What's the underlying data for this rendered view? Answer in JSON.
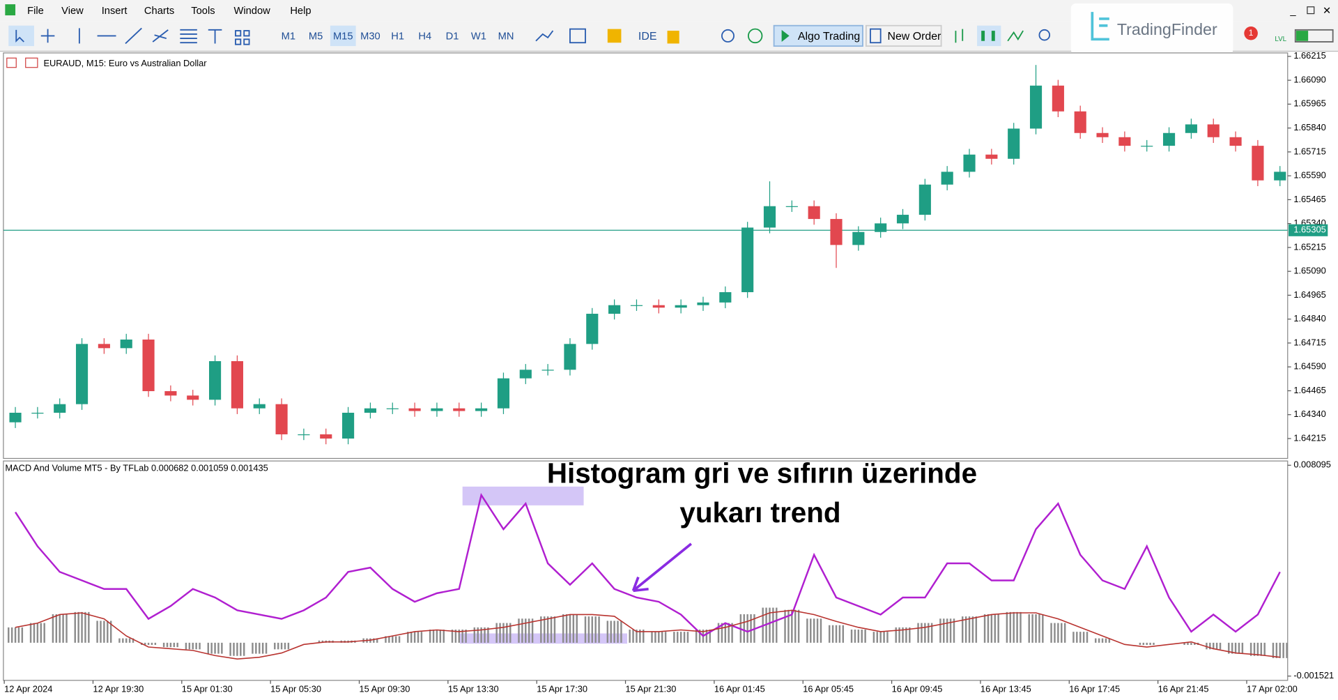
{
  "menu": [
    "File",
    "View",
    "Insert",
    "Charts",
    "Tools",
    "Window",
    "Help"
  ],
  "toolbar": {
    "timeframes": [
      "M1",
      "M5",
      "M15",
      "M30",
      "H1",
      "H4",
      "D1",
      "W1",
      "MN"
    ],
    "active_timeframe": "M15",
    "buttons": [
      "IDE",
      "Algo Trading",
      "New Order"
    ],
    "logo": "TradingFinder",
    "badge": "1"
  },
  "chart_data": [
    {
      "type": "candlestick",
      "title": "EURAUD, M15:  Euro vs Australian Dollar",
      "categories": [
        "12 Apr 2024",
        null,
        null,
        null,
        "12 Apr 19:30",
        null,
        null,
        null,
        "15 Apr 01:30",
        null,
        null,
        null,
        "15 Apr 05:30",
        null,
        null,
        null,
        "15 Apr 09:30",
        null,
        null,
        null,
        "15 Apr 13:30",
        null,
        null,
        null,
        "15 Apr 17:30",
        null,
        null,
        null,
        "15 Apr 21:30",
        null,
        null,
        null,
        "16 Apr 01:45",
        null,
        null,
        null,
        "16 Apr 05:45",
        null,
        null,
        null,
        "16 Apr 09:45",
        null,
        null,
        null,
        "16 Apr 13:45",
        null,
        null,
        null,
        "16 Apr 17:45",
        null,
        null,
        null,
        "16 Apr 21:45",
        null,
        null,
        null,
        "17 Apr 02:00",
        null
      ],
      "open": [
        1.643,
        1.6435,
        1.6435,
        1.64395,
        1.6471,
        1.64688,
        1.64733,
        1.64463,
        1.6444,
        1.64418,
        1.6462,
        1.64373,
        1.64395,
        1.64237,
        1.64237,
        1.64215,
        1.6435,
        1.64373,
        1.64373,
        1.64359,
        1.64373,
        1.64359,
        1.64373,
        1.6453,
        1.64575,
        1.64575,
        1.6471,
        1.64868,
        1.64913,
        1.64913,
        1.649,
        1.64913,
        1.64927,
        1.64981,
        1.65319,
        1.65431,
        1.65431,
        1.65364,
        1.65228,
        1.65296,
        1.65341,
        1.65386,
        1.65544,
        1.65611,
        1.65701,
        1.65679,
        1.65837,
        1.66062,
        1.65927,
        1.65814,
        1.65792,
        1.65747,
        1.65747,
        1.65814,
        1.65859,
        1.65792,
        1.65747,
        1.65566
      ],
      "high": [
        1.6438,
        1.6438,
        1.64425,
        1.6474,
        1.6474,
        1.64763,
        1.64763,
        1.64493,
        1.6447,
        1.6465,
        1.6465,
        1.64425,
        1.64425,
        1.64267,
        1.64267,
        1.6438,
        1.64403,
        1.64403,
        1.64403,
        1.64403,
        1.64403,
        1.64403,
        1.6456,
        1.64605,
        1.64605,
        1.6474,
        1.64898,
        1.64943,
        1.64943,
        1.64943,
        1.64943,
        1.64957,
        1.65011,
        1.65349,
        1.65561,
        1.65461,
        1.65461,
        1.65394,
        1.65326,
        1.65371,
        1.65416,
        1.65574,
        1.65641,
        1.65731,
        1.65731,
        1.65867,
        1.6617,
        1.66092,
        1.65957,
        1.65844,
        1.65822,
        1.65777,
        1.65844,
        1.65889,
        1.65889,
        1.65822,
        1.65777,
        1.65641
      ],
      "low": [
        1.6427,
        1.6432,
        1.6432,
        1.64365,
        1.64658,
        1.64658,
        1.64433,
        1.6441,
        1.64388,
        1.64388,
        1.64343,
        1.64343,
        1.64207,
        1.64207,
        1.64185,
        1.64185,
        1.6432,
        1.64343,
        1.64329,
        1.64329,
        1.64329,
        1.64329,
        1.64343,
        1.645,
        1.64545,
        1.64545,
        1.6468,
        1.64838,
        1.64883,
        1.6487,
        1.6487,
        1.64883,
        1.64897,
        1.64951,
        1.65289,
        1.65401,
        1.65334,
        1.65108,
        1.65198,
        1.65266,
        1.65311,
        1.65356,
        1.65514,
        1.65581,
        1.65649,
        1.65649,
        1.65807,
        1.65897,
        1.65784,
        1.65762,
        1.65717,
        1.65717,
        1.65717,
        1.65784,
        1.65762,
        1.65717,
        1.65536,
        1.65536
      ],
      "close": [
        1.6435,
        1.6435,
        1.64395,
        1.6471,
        1.64688,
        1.64733,
        1.64463,
        1.6444,
        1.64418,
        1.6462,
        1.64373,
        1.64395,
        1.64237,
        1.64237,
        1.64215,
        1.6435,
        1.64373,
        1.64373,
        1.64359,
        1.64373,
        1.64359,
        1.64373,
        1.6453,
        1.64575,
        1.64575,
        1.6471,
        1.64868,
        1.64913,
        1.64913,
        1.649,
        1.64913,
        1.64927,
        1.64981,
        1.65319,
        1.65431,
        1.65431,
        1.65364,
        1.65228,
        1.65296,
        1.65341,
        1.65386,
        1.65544,
        1.65611,
        1.65701,
        1.65679,
        1.65837,
        1.66062,
        1.65927,
        1.65814,
        1.65792,
        1.65747,
        1.65747,
        1.65814,
        1.65859,
        1.65792,
        1.65747,
        1.65566,
        1.65611
      ],
      "up_color": "#1f9e84",
      "down_color": "#e2474f",
      "ylim": [
        1.64111,
        1.66233
      ],
      "yticks": [
        1.66215,
        {
          "value": 1.6609,
          "label": "1.66090"
        },
        1.65965,
        {
          "value": 1.6584,
          "label": "1.65840"
        },
        1.65715,
        {
          "value": 1.6559,
          "label": "1.65590"
        },
        1.65465,
        {
          "value": 1.6534,
          "label": "1.65340"
        },
        1.65215,
        {
          "value": 1.6509,
          "label": "1.65090"
        },
        1.64965,
        {
          "value": 1.6484,
          "label": "1.64840"
        },
        1.64715,
        {
          "value": 1.6459,
          "label": "1.64590"
        },
        1.64465,
        {
          "value": 1.6434,
          "label": "1.64340"
        },
        1.64215
      ],
      "current_price": 1.65305,
      "current_price_color": "#1f9e84"
    },
    {
      "type": "macd",
      "title": "MACD And Volume MT5 - By TFLab 0.000682 0.001059 0.001435",
      "series": [
        {
          "color": "#b01fd0",
          "values": [
            0.005956,
            0.004399,
            0.003231,
            0.002842,
            0.002453,
            0.002453,
            0.00109,
            0.001674,
            0.002453,
            0.002063,
            0.001479,
            0.001285,
            0.00109,
            0.001479,
            0.002063,
            0.003231,
            0.003426,
            0.002453,
            0.001869,
            0.002258,
            0.002453,
            0.006735,
            0.005178,
            0.006346,
            0.00362,
            0.002647,
            0.00362,
            0.002453,
            0.002063,
            0.001869,
            0.001285,
            0.000311,
            0.000895,
            0.000506,
            0.000895,
            0.001285,
            0.00401,
            0.002063,
            0.001674,
            0.001285,
            0.002063,
            0.002063,
            0.00362,
            0.00362,
            0.002842,
            0.002842,
            0.005178,
            0.006346,
            0.00401,
            0.002842,
            0.002453,
            0.004399,
            0.002063,
            0.000506,
            0.001285,
            0.000506,
            0.001285,
            0.003231
          ]
        },
        {
          "color": "#b8322e",
          "values": [
            0.000701,
            0.000895,
            0.001285,
            0.001363,
            0.00109,
            0.000311,
            -0.000195,
            -0.000273,
            -0.00035,
            -0.000584,
            -0.00074,
            -0.000662,
            -0.000467,
            -7.8e-05,
            3.9e-05,
            3.9e-05,
            0.000117,
            0.000311,
            0.000506,
            0.000584,
            0.000506,
            0.000584,
            0.000701,
            0.000895,
            0.00109,
            0.001285,
            0.001285,
            0.001207,
            0.000506,
            0.000506,
            0.000584,
            0.000506,
            0.000701,
            0.000973,
            0.001363,
            0.001479,
            0.001285,
            0.000973,
            0.000701,
            0.000506,
            0.000584,
            0.000701,
            0.000895,
            0.00109,
            0.001285,
            0.001363,
            0.001363,
            0.00109,
            0.000701,
            0.000311,
            -7.8e-05,
            -0.000195,
            -7.8e-05,
            3.9e-05,
            -0.000273,
            -0.000467,
            -0.000545,
            -0.000662
          ]
        }
      ],
      "histogram": {
        "color": "#8c8c8c",
        "values": [
          0.0007,
          0.0009,
          0.0013,
          0.0014,
          0.001,
          0.0002,
          -0.0001,
          -0.0002,
          -0.0003,
          -0.0005,
          -0.0006,
          -0.0005,
          -0.0003,
          0,
          0.0001,
          0.0001,
          0.0002,
          0.0003,
          0.0005,
          0.0006,
          0.0006,
          0.0007,
          0.0009,
          0.0011,
          0.0012,
          0.0013,
          0.0012,
          0.001,
          0.0006,
          0.0005,
          0.0005,
          0.0006,
          0.0009,
          0.0013,
          0.0016,
          0.0015,
          0.0011,
          0.0008,
          0.0006,
          0.0005,
          0.0007,
          0.0009,
          0.0011,
          0.0012,
          0.0013,
          0.0014,
          0.0013,
          0.0009,
          0.0005,
          0.0002,
          0,
          -0.0001,
          0,
          -0.0001,
          -0.0003,
          -0.0005,
          -0.0006,
          -0.0007
        ]
      },
      "ylim": [
        -0.001521,
        0.008095
      ],
      "yticks": [
        0.008095,
        -0.001521
      ],
      "annotation": [
        "Histogram gri ve sıfırın üzerinde",
        "yukarı trend"
      ]
    }
  ]
}
